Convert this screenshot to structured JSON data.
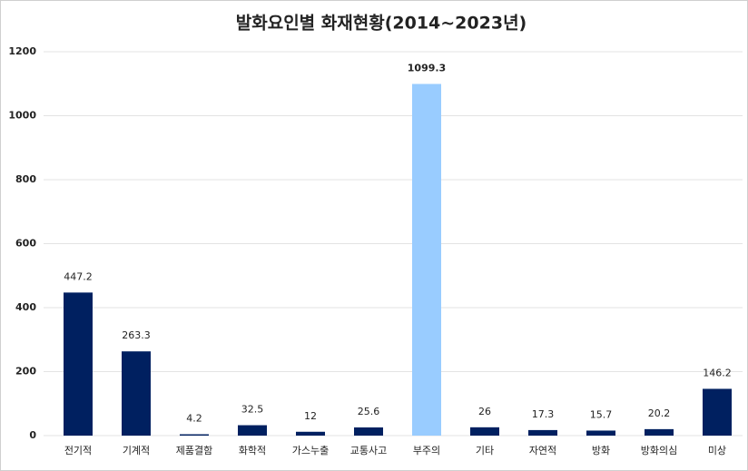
{
  "chart_data": {
    "type": "bar",
    "title": "발화요인별 화재현황(2014~2023년)",
    "categories": [
      "전기적",
      "기계적",
      "제품결함",
      "화학적",
      "가스누출",
      "교통사고",
      "부주의",
      "기타",
      "자연적",
      "방화",
      "방화의심",
      "미상"
    ],
    "values": [
      447.2,
      263.3,
      4.2,
      32.5,
      12,
      25.6,
      1099.3,
      26,
      17.3,
      15.7,
      20.2,
      146.2
    ],
    "colors": [
      "#002060",
      "#002060",
      "#002060",
      "#002060",
      "#002060",
      "#002060",
      "#99ccff",
      "#002060",
      "#002060",
      "#002060",
      "#002060",
      "#002060"
    ],
    "ylim": [
      0,
      1200
    ],
    "yticks": [
      0,
      200,
      400,
      600,
      800,
      1000,
      1200
    ],
    "grid": true
  }
}
